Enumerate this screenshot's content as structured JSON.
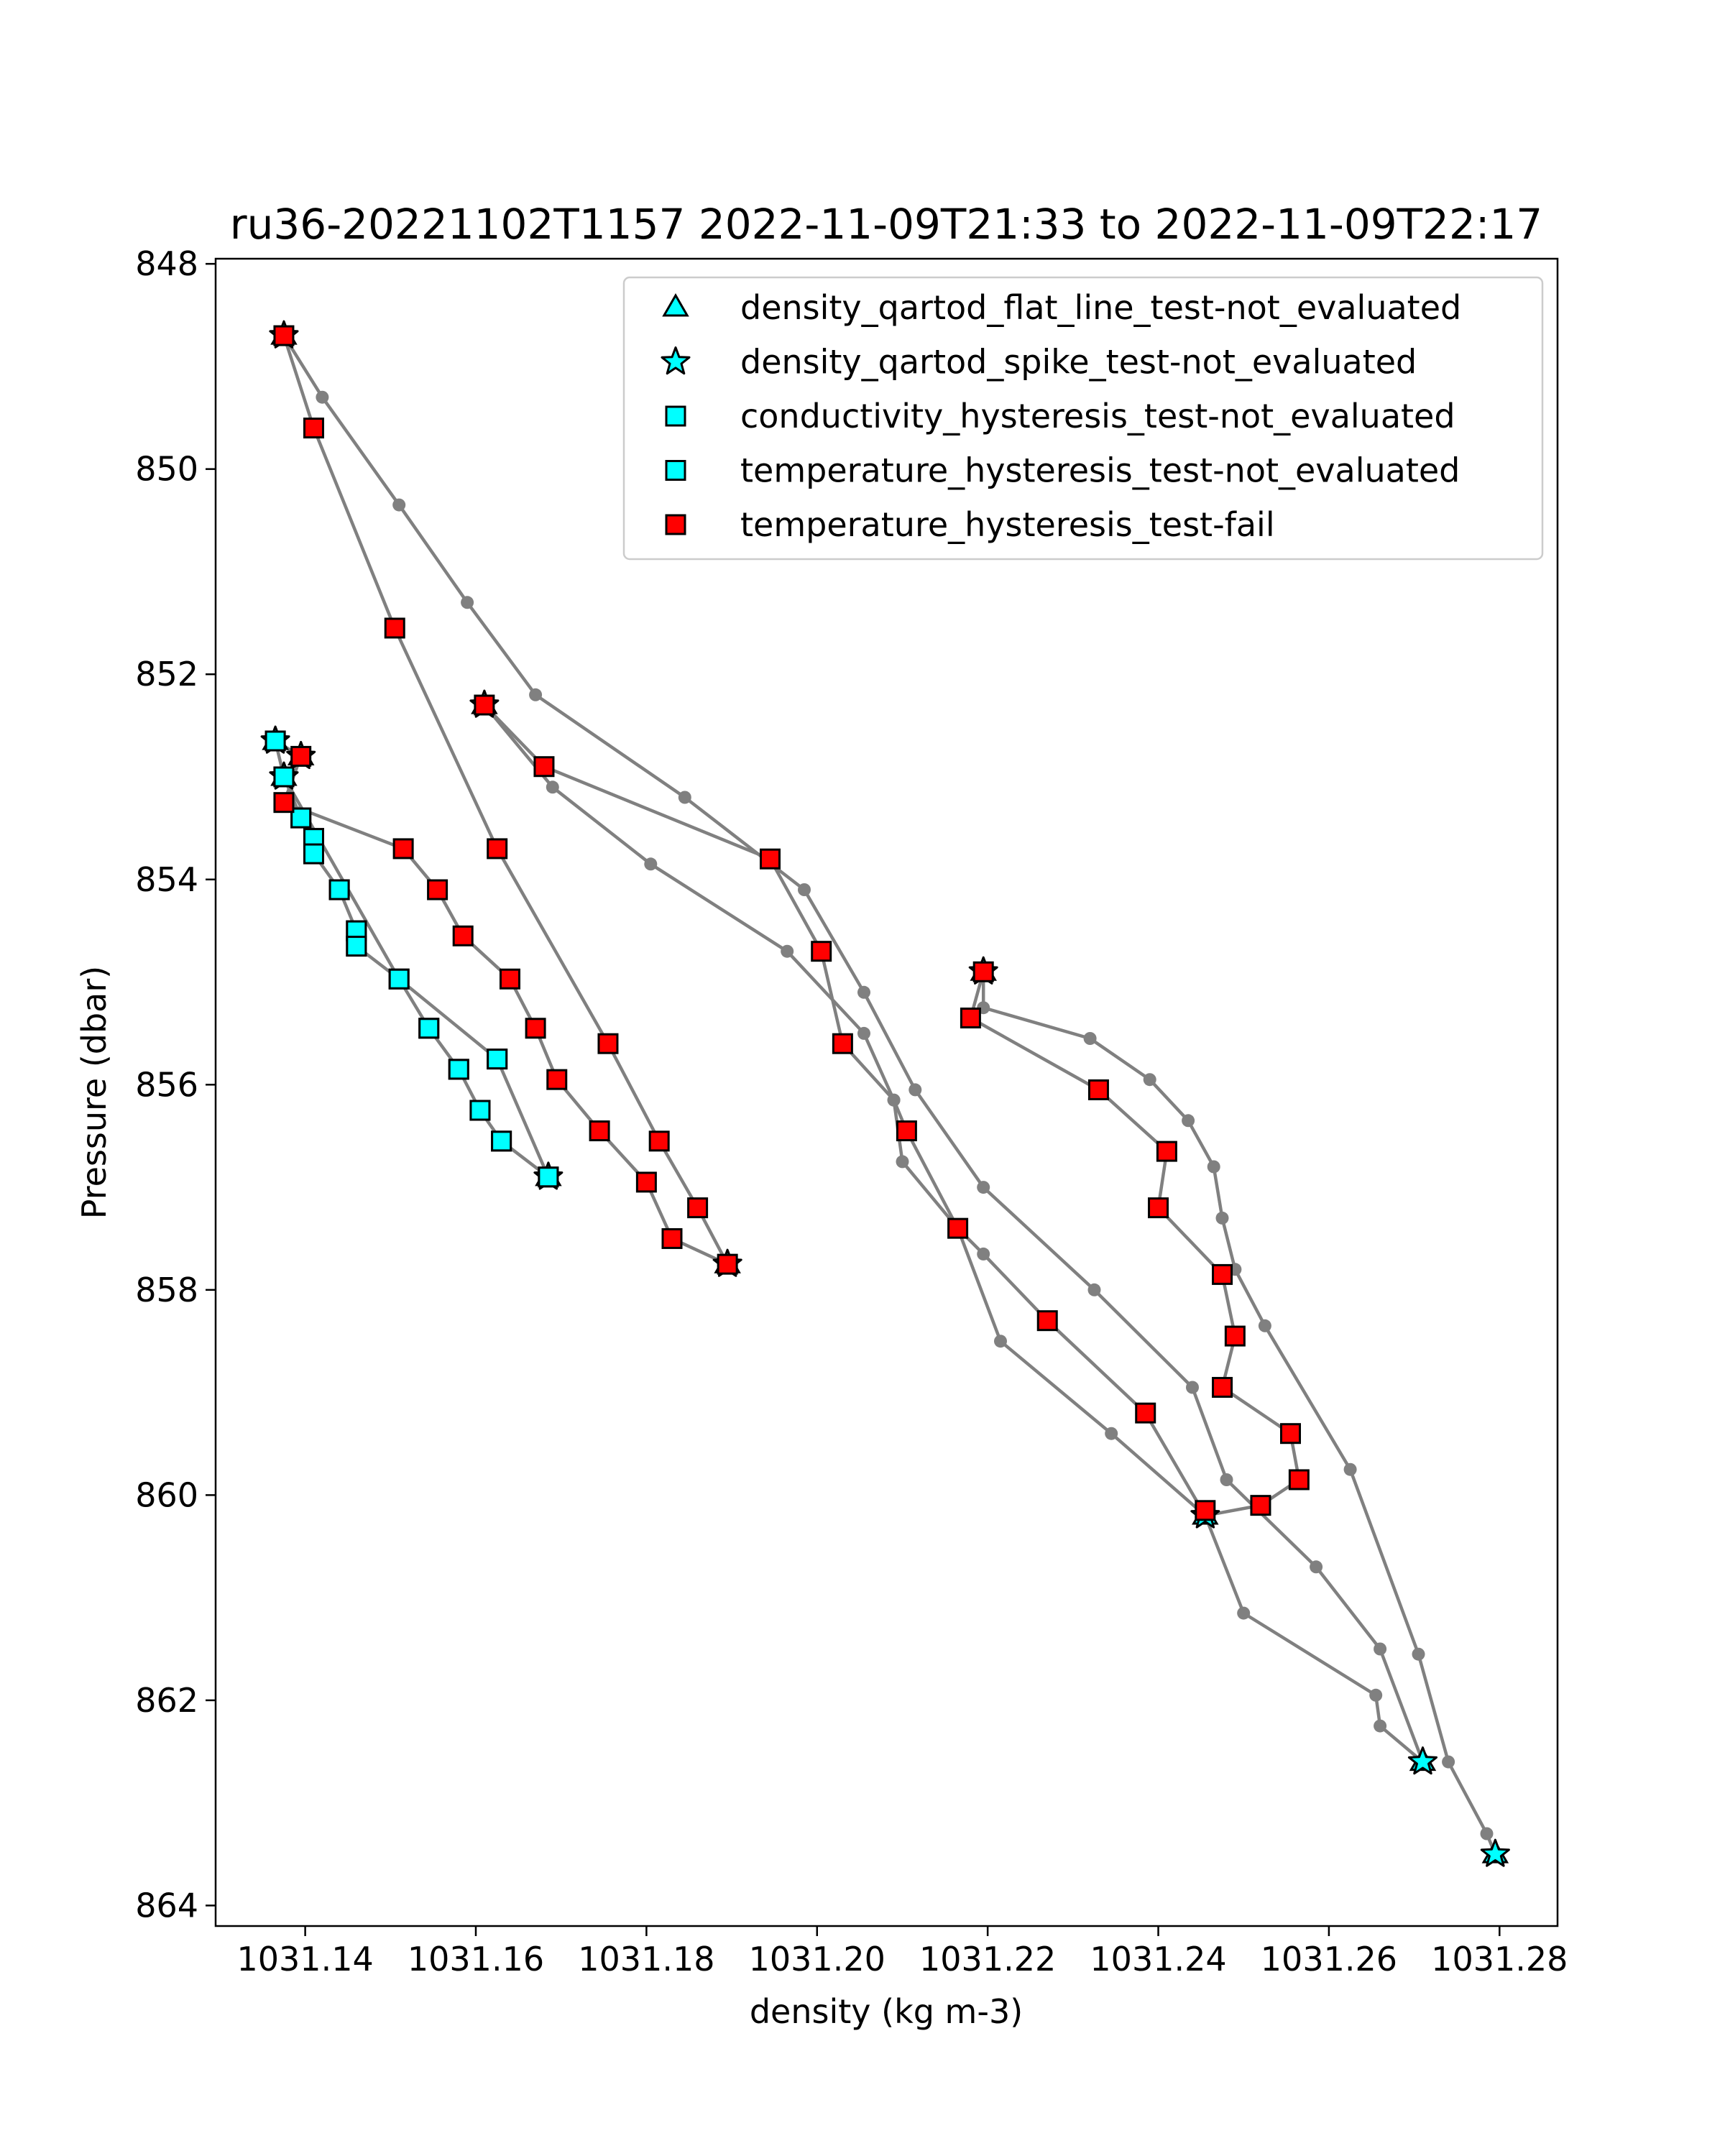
{
  "chart_data": {
    "type": "scatter",
    "title": "ru36-20221102T1157 2022-11-09T21:33 to 2022-11-09T22:17",
    "xlabel": "density (kg m-3)",
    "ylabel": "Pressure (dbar)",
    "xlim": [
      1031.1295,
      1031.2868
    ],
    "ylim": [
      864.2,
      847.95
    ],
    "y_inverted": true,
    "x_ticks": [
      1031.14,
      1031.16,
      1031.18,
      1031.2,
      1031.22,
      1031.24,
      1031.26,
      1031.28
    ],
    "x_tick_labels": [
      "1031.14",
      "1031.16",
      "1031.18",
      "1031.20",
      "1031.22",
      "1031.24",
      "1031.26",
      "1031.28"
    ],
    "y_ticks": [
      848,
      850,
      852,
      854,
      856,
      858,
      860,
      862,
      864
    ],
    "y_tick_labels": [
      "848",
      "850",
      "852",
      "854",
      "856",
      "858",
      "860",
      "862",
      "864"
    ],
    "grid": false,
    "legend_position": "top-right",
    "colors": {
      "profile_line": "#808080",
      "not_evaluated": "#00ffff",
      "fail": "#ff0000",
      "marker_edge": "#000000"
    },
    "profile_series": [
      [
        [
          1031.1375,
          848.7
        ],
        [
          1031.142,
          849.3
        ],
        [
          1031.151,
          850.35
        ],
        [
          1031.159,
          851.3
        ],
        [
          1031.167,
          852.2
        ],
        [
          1031.1845,
          853.2
        ],
        [
          1031.1985,
          854.1
        ],
        [
          1031.2055,
          855.1
        ],
        [
          1031.2115,
          856.05
        ],
        [
          1031.2195,
          857.0
        ],
        [
          1031.2325,
          858.0
        ],
        [
          1031.244,
          858.95
        ],
        [
          1031.248,
          859.85
        ],
        [
          1031.2585,
          860.7
        ],
        [
          1031.266,
          861.5
        ],
        [
          1031.271,
          862.6
        ]
      ],
      [
        [
          1031.1375,
          848.7
        ],
        [
          1031.141,
          849.6
        ],
        [
          1031.1505,
          851.55
        ],
        [
          1031.1625,
          853.7
        ],
        [
          1031.1755,
          855.6
        ],
        [
          1031.1815,
          856.55
        ],
        [
          1031.186,
          857.2
        ],
        [
          1031.1895,
          857.75
        ]
      ],
      [
        [
          1031.161,
          852.3
        ],
        [
          1031.168,
          852.9
        ],
        [
          1031.1945,
          853.8
        ],
        [
          1031.2005,
          854.7
        ],
        [
          1031.203,
          855.6
        ],
        [
          1031.209,
          856.15
        ],
        [
          1031.2105,
          856.45
        ],
        [
          1031.2165,
          857.4
        ],
        [
          1031.2195,
          857.65
        ],
        [
          1031.227,
          858.3
        ],
        [
          1031.2385,
          859.2
        ],
        [
          1031.2455,
          860.2
        ]
      ],
      [
        [
          1031.161,
          852.3
        ],
        [
          1031.169,
          853.1
        ],
        [
          1031.1805,
          853.85
        ],
        [
          1031.1965,
          854.7
        ],
        [
          1031.2055,
          855.5
        ],
        [
          1031.209,
          856.15
        ],
        [
          1031.21,
          856.75
        ],
        [
          1031.2165,
          857.4
        ],
        [
          1031.2215,
          858.5
        ],
        [
          1031.2345,
          859.4
        ],
        [
          1031.2455,
          860.2
        ],
        [
          1031.25,
          861.15
        ],
        [
          1031.2655,
          861.95
        ],
        [
          1031.266,
          862.25
        ],
        [
          1031.271,
          862.6
        ]
      ],
      [
        [
          1031.1365,
          852.65
        ],
        [
          1031.1395,
          852.8
        ],
        [
          1031.1375,
          853.25
        ],
        [
          1031.1515,
          853.7
        ],
        [
          1031.1555,
          854.1
        ],
        [
          1031.1585,
          854.55
        ],
        [
          1031.164,
          854.97
        ],
        [
          1031.167,
          855.45
        ],
        [
          1031.1695,
          855.95
        ],
        [
          1031.1745,
          856.45
        ],
        [
          1031.18,
          856.95
        ],
        [
          1031.183,
          857.5
        ],
        [
          1031.1895,
          857.75
        ]
      ],
      [
        [
          1031.1365,
          852.65
        ],
        [
          1031.1375,
          853.0
        ],
        [
          1031.1395,
          853.4
        ],
        [
          1031.141,
          853.6
        ],
        [
          1031.141,
          853.75
        ],
        [
          1031.144,
          854.1
        ],
        [
          1031.146,
          854.5
        ],
        [
          1031.146,
          854.65
        ],
        [
          1031.151,
          854.97
        ],
        [
          1031.1625,
          855.75
        ],
        [
          1031.1685,
          856.9
        ]
      ],
      [
        [
          1031.1375,
          853.0
        ],
        [
          1031.151,
          854.97
        ],
        [
          1031.1545,
          855.45
        ],
        [
          1031.158,
          855.85
        ],
        [
          1031.1605,
          856.25
        ],
        [
          1031.163,
          856.55
        ],
        [
          1031.1685,
          856.9
        ]
      ],
      [
        [
          1031.2195,
          854.9
        ],
        [
          1031.2195,
          855.25
        ],
        [
          1031.232,
          855.55
        ],
        [
          1031.239,
          855.95
        ],
        [
          1031.2435,
          856.35
        ],
        [
          1031.2465,
          856.8
        ],
        [
          1031.2475,
          857.3
        ],
        [
          1031.249,
          857.8
        ],
        [
          1031.2525,
          858.35
        ],
        [
          1031.2625,
          859.75
        ],
        [
          1031.2705,
          861.55
        ],
        [
          1031.274,
          862.6
        ],
        [
          1031.2785,
          863.3
        ],
        [
          1031.2795,
          863.5
        ]
      ],
      [
        [
          1031.2195,
          854.9
        ],
        [
          1031.218,
          855.35
        ],
        [
          1031.233,
          856.05
        ],
        [
          1031.241,
          856.65
        ],
        [
          1031.24,
          857.2
        ],
        [
          1031.2475,
          857.85
        ],
        [
          1031.249,
          858.45
        ],
        [
          1031.2475,
          858.95
        ],
        [
          1031.2555,
          859.4
        ],
        [
          1031.2565,
          859.85
        ],
        [
          1031.252,
          860.1
        ],
        [
          1031.2455,
          860.2
        ]
      ]
    ],
    "series": [
      {
        "name": "density_qartod_flat_line_test-not_evaluated",
        "marker": "triangle",
        "color": "#00ffff",
        "points": [
          [
            1031.1375,
            848.7
          ],
          [
            1031.161,
            852.3
          ],
          [
            1031.1365,
            852.65
          ],
          [
            1031.1395,
            852.8
          ],
          [
            1031.1375,
            853.0
          ],
          [
            1031.1685,
            856.9
          ],
          [
            1031.1895,
            857.75
          ],
          [
            1031.2195,
            854.9
          ],
          [
            1031.2455,
            860.2
          ],
          [
            1031.271,
            862.6
          ],
          [
            1031.2795,
            863.5
          ]
        ]
      },
      {
        "name": "density_qartod_spike_test-not_evaluated",
        "marker": "star",
        "color": "#00ffff",
        "points": [
          [
            1031.1375,
            848.7
          ],
          [
            1031.161,
            852.3
          ],
          [
            1031.1365,
            852.65
          ],
          [
            1031.1395,
            852.8
          ],
          [
            1031.1375,
            853.0
          ],
          [
            1031.1685,
            856.9
          ],
          [
            1031.1895,
            857.75
          ],
          [
            1031.2195,
            854.9
          ],
          [
            1031.2455,
            860.2
          ],
          [
            1031.271,
            862.6
          ],
          [
            1031.2795,
            863.5
          ]
        ]
      },
      {
        "name": "conductivity_hysteresis_test-not_evaluated",
        "marker": "square",
        "color": "#00ffff",
        "points": [
          [
            1031.1365,
            852.65
          ],
          [
            1031.1375,
            853.0
          ],
          [
            1031.1395,
            853.4
          ],
          [
            1031.141,
            853.6
          ],
          [
            1031.141,
            853.75
          ],
          [
            1031.144,
            854.1
          ],
          [
            1031.146,
            854.5
          ],
          [
            1031.146,
            854.65
          ],
          [
            1031.151,
            854.97
          ],
          [
            1031.1545,
            855.45
          ],
          [
            1031.158,
            855.85
          ],
          [
            1031.1625,
            855.75
          ],
          [
            1031.1605,
            856.25
          ],
          [
            1031.163,
            856.55
          ],
          [
            1031.1685,
            856.9
          ]
        ]
      },
      {
        "name": "temperature_hysteresis_test-not_evaluated",
        "marker": "square",
        "color": "#00ffff",
        "points": [
          [
            1031.1365,
            852.65
          ],
          [
            1031.1375,
            853.0
          ],
          [
            1031.1395,
            853.4
          ],
          [
            1031.141,
            853.6
          ],
          [
            1031.141,
            853.75
          ],
          [
            1031.144,
            854.1
          ],
          [
            1031.146,
            854.5
          ],
          [
            1031.146,
            854.65
          ],
          [
            1031.151,
            854.97
          ],
          [
            1031.1545,
            855.45
          ],
          [
            1031.158,
            855.85
          ],
          [
            1031.1625,
            855.75
          ],
          [
            1031.1605,
            856.25
          ],
          [
            1031.163,
            856.55
          ],
          [
            1031.1685,
            856.9
          ]
        ]
      },
      {
        "name": "temperature_hysteresis_test-fail",
        "marker": "square",
        "color": "#ff0000",
        "points": [
          [
            1031.1375,
            848.7
          ],
          [
            1031.141,
            849.6
          ],
          [
            1031.1505,
            851.55
          ],
          [
            1031.161,
            852.3
          ],
          [
            1031.1625,
            853.7
          ],
          [
            1031.1755,
            855.6
          ],
          [
            1031.1815,
            856.55
          ],
          [
            1031.186,
            857.2
          ],
          [
            1031.183,
            857.5
          ],
          [
            1031.1895,
            857.75
          ],
          [
            1031.1395,
            852.8
          ],
          [
            1031.1375,
            853.25
          ],
          [
            1031.1515,
            853.7
          ],
          [
            1031.1555,
            854.1
          ],
          [
            1031.1585,
            854.55
          ],
          [
            1031.164,
            854.97
          ],
          [
            1031.167,
            855.45
          ],
          [
            1031.1695,
            855.95
          ],
          [
            1031.1745,
            856.45
          ],
          [
            1031.18,
            856.95
          ],
          [
            1031.168,
            852.9
          ],
          [
            1031.1945,
            853.8
          ],
          [
            1031.2005,
            854.7
          ],
          [
            1031.203,
            855.6
          ],
          [
            1031.2105,
            856.45
          ],
          [
            1031.2165,
            857.4
          ],
          [
            1031.227,
            858.3
          ],
          [
            1031.2385,
            859.2
          ],
          [
            1031.2455,
            860.15
          ],
          [
            1031.2195,
            854.9
          ],
          [
            1031.218,
            855.35
          ],
          [
            1031.233,
            856.05
          ],
          [
            1031.241,
            856.65
          ],
          [
            1031.24,
            857.2
          ],
          [
            1031.2475,
            857.85
          ],
          [
            1031.249,
            858.45
          ],
          [
            1031.2475,
            858.95
          ],
          [
            1031.2555,
            859.4
          ],
          [
            1031.2565,
            859.85
          ],
          [
            1031.252,
            860.1
          ]
        ]
      }
    ]
  }
}
